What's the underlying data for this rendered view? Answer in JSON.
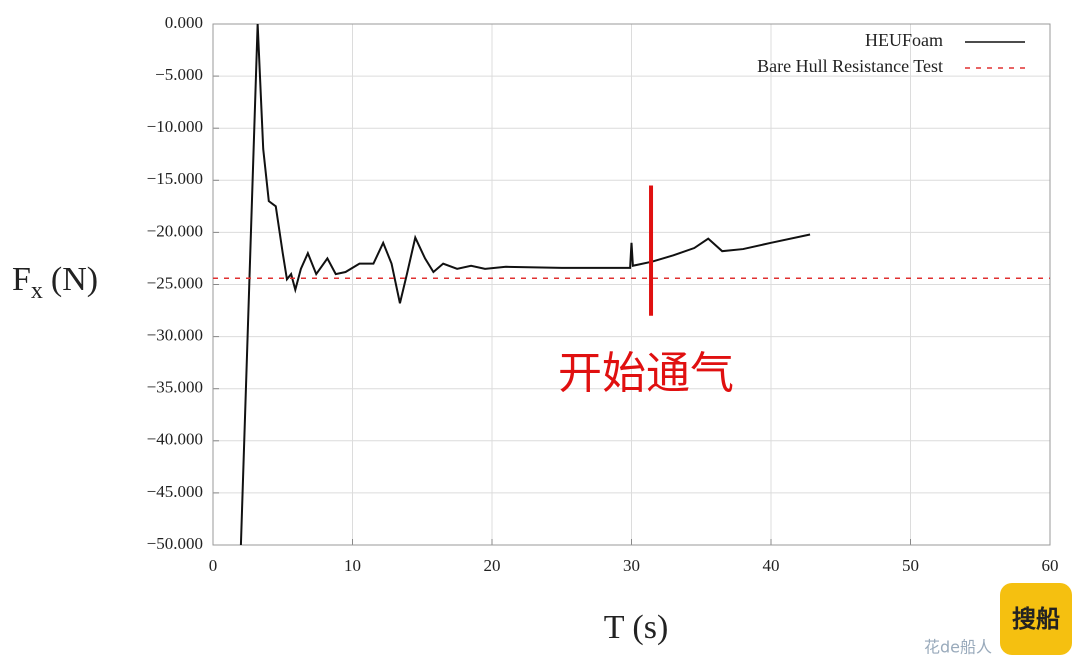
{
  "chart_data": {
    "type": "line",
    "x_label": "T (s)",
    "y_label": "F",
    "y_label_sub": "x",
    "y_label_unit": "(N)",
    "xlim": [
      0,
      60
    ],
    "xticks": [
      0,
      10,
      20,
      30,
      40,
      50,
      60
    ],
    "ylim": [
      -50,
      0
    ],
    "yticks": [
      {
        "value": 0,
        "label": "0.000"
      },
      {
        "value": -5,
        "label": "−5.000"
      },
      {
        "value": -10,
        "label": "−10.000"
      },
      {
        "value": -15,
        "label": "−15.000"
      },
      {
        "value": -20,
        "label": "−20.000"
      },
      {
        "value": -25,
        "label": "−25.000"
      },
      {
        "value": -30,
        "label": "−30.000"
      },
      {
        "value": -35,
        "label": "−35.000"
      },
      {
        "value": -40,
        "label": "−40.000"
      },
      {
        "value": -45,
        "label": "−45.000"
      },
      {
        "value": -50,
        "label": "−50.000"
      }
    ],
    "grid": true,
    "legend": "top-right",
    "series": [
      {
        "name": "HEUFoam",
        "color": "#111111",
        "style": "solid",
        "x": [
          2.0,
          2.6,
          3.2,
          3.6,
          4.0,
          4.5,
          5.0,
          5.3,
          5.6,
          5.9,
          6.3,
          6.8,
          7.4,
          8.2,
          8.8,
          9.5,
          10.5,
          11.5,
          12.2,
          12.8,
          13.4,
          13.9,
          14.5,
          15.2,
          15.8,
          16.5,
          17.5,
          18.5,
          19.5,
          21,
          25,
          29.9,
          30.0,
          30.1,
          31.5,
          33,
          34.5,
          35.5,
          36.5,
          38,
          40,
          42.8
        ],
        "values": [
          -50,
          -25,
          0,
          -12,
          -17,
          -17.5,
          -22,
          -24.5,
          -24,
          -25.5,
          -23.5,
          -22,
          -24,
          -22.5,
          -24,
          -23.8,
          -23,
          -23,
          -21,
          -23,
          -26.8,
          -24,
          -20.5,
          -22.5,
          -23.8,
          -23,
          -23.5,
          -23.2,
          -23.5,
          -23.3,
          -23.4,
          -23.4,
          -21,
          -23.2,
          -22.8,
          -22.2,
          -21.5,
          -20.6,
          -21.8,
          -21.6,
          -21,
          -20.2
        ]
      },
      {
        "name": "Bare Hull Resistance Test",
        "color": "#e03030",
        "style": "dashed",
        "x": [
          0,
          60
        ],
        "values": [
          -24.4,
          -24.4
        ]
      }
    ],
    "annotation": {
      "text": "开始通气",
      "color": "#e01010",
      "x": 31.4,
      "y_range": [
        -15.5,
        -28
      ]
    },
    "watermark": {
      "badge": "搜船",
      "text": "花de船人"
    }
  }
}
